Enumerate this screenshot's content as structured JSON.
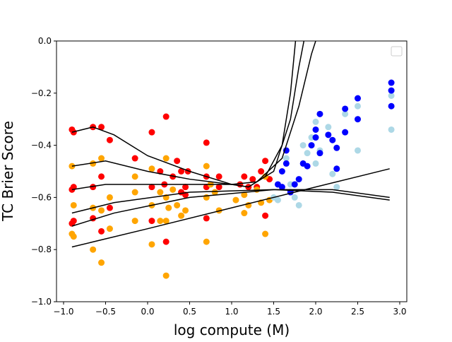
{
  "chart_data": {
    "type": "scatter",
    "xlabel": "log compute (M)",
    "ylabel": "TC Brier Score",
    "xlim": [
      -1.084,
      3.084
    ],
    "ylim": [
      -1.0,
      0.0
    ],
    "xticks": [
      {
        "value": -1.0,
        "label": "−1.0"
      },
      {
        "value": -0.5,
        "label": "−0.5"
      },
      {
        "value": 0.0,
        "label": "0.0"
      },
      {
        "value": 0.5,
        "label": "0.5"
      },
      {
        "value": 1.0,
        "label": "1.0"
      },
      {
        "value": 1.5,
        "label": "1.5"
      },
      {
        "value": 2.0,
        "label": "2.0"
      },
      {
        "value": 2.5,
        "label": "2.5"
      },
      {
        "value": 3.0,
        "label": "3.0"
      }
    ],
    "yticks": [
      {
        "value": -1.0,
        "label": "−1.0"
      },
      {
        "value": -0.8,
        "label": "−0.8"
      },
      {
        "value": -0.6,
        "label": "−0.6"
      },
      {
        "value": -0.4,
        "label": "−0.4"
      },
      {
        "value": -0.2,
        "label": "−0.2"
      },
      {
        "value": 0.0,
        "label": "0.0"
      }
    ],
    "legend": "upper right",
    "series": [
      {
        "type": "scatter",
        "color": "#ff0000",
        "x": [
          -0.9,
          -0.88,
          -0.65,
          -0.55,
          -0.45,
          -0.9,
          -0.88,
          -0.65,
          -0.55,
          -0.45,
          -0.9,
          -0.88,
          -0.55,
          -0.65,
          -0.15,
          0.05,
          0.22,
          0.05,
          0.05,
          0.15,
          0.2,
          0.22,
          0.3,
          0.35,
          0.4,
          0.45,
          0.48,
          0.4,
          0.45,
          0.7,
          0.7,
          0.7,
          0.7,
          0.85,
          0.85,
          1.1,
          1.15,
          1.2,
          1.25,
          1.3,
          1.35,
          1.4,
          1.4,
          1.45
        ],
        "values": [
          -0.34,
          -0.35,
          -0.33,
          -0.33,
          -0.38,
          -0.57,
          -0.56,
          -0.56,
          -0.52,
          -0.64,
          -0.7,
          -0.69,
          -0.73,
          -0.68,
          -0.45,
          -0.35,
          -0.29,
          -0.56,
          -0.69,
          -0.5,
          -0.55,
          -0.77,
          -0.52,
          -0.46,
          -0.5,
          -0.56,
          -0.5,
          -0.58,
          -0.59,
          -0.39,
          -0.52,
          -0.56,
          -0.68,
          -0.52,
          -0.56,
          -0.55,
          -0.52,
          -0.56,
          -0.53,
          -0.56,
          -0.5,
          -0.46,
          -0.67,
          -0.53
        ]
      },
      {
        "type": "scatter",
        "color": "#ffa500",
        "x": [
          -0.9,
          -0.88,
          -0.9,
          -0.88,
          -0.65,
          -0.65,
          -0.65,
          -0.55,
          -0.55,
          -0.55,
          -0.45,
          -0.45,
          -0.15,
          -0.15,
          -0.15,
          0.05,
          0.05,
          0.05,
          0.15,
          0.15,
          0.22,
          0.22,
          0.22,
          0.22,
          0.25,
          0.3,
          0.35,
          0.4,
          0.45,
          0.7,
          0.7,
          0.7,
          0.75,
          0.8,
          0.85,
          1.05,
          1.15,
          1.15,
          1.2,
          1.3,
          1.35,
          1.4,
          1.4,
          1.45
        ],
        "values": [
          -0.48,
          -0.63,
          -0.74,
          -0.75,
          -0.47,
          -0.64,
          -0.8,
          -0.45,
          -0.65,
          -0.85,
          -0.6,
          -0.72,
          -0.52,
          -0.58,
          -0.69,
          -0.49,
          -0.63,
          -0.78,
          -0.58,
          -0.69,
          -0.45,
          -0.6,
          -0.69,
          -0.9,
          -0.64,
          -0.57,
          -0.63,
          -0.67,
          -0.65,
          -0.48,
          -0.6,
          -0.77,
          -0.55,
          -0.58,
          -0.65,
          -0.61,
          -0.59,
          -0.66,
          -0.63,
          -0.57,
          -0.62,
          -0.52,
          -0.74,
          -0.61
        ]
      },
      {
        "type": "scatter",
        "color": "#add8e6",
        "x": [
          1.5,
          1.55,
          1.65,
          1.7,
          1.75,
          1.8,
          1.85,
          1.9,
          1.95,
          2.0,
          2.0,
          2.05,
          2.15,
          2.2,
          2.25,
          2.35,
          2.5,
          2.5,
          2.9,
          2.9
        ],
        "values": [
          -0.6,
          -0.61,
          -0.45,
          -0.55,
          -0.6,
          -0.63,
          -0.4,
          -0.43,
          -0.37,
          -0.31,
          -0.47,
          -0.42,
          -0.33,
          -0.51,
          -0.56,
          -0.28,
          -0.25,
          -0.42,
          -0.21,
          -0.34
        ]
      },
      {
        "type": "scatter",
        "color": "#0000ff",
        "x": [
          1.55,
          1.6,
          1.6,
          1.65,
          1.65,
          1.7,
          1.75,
          1.8,
          1.85,
          1.9,
          1.95,
          2.0,
          2.0,
          2.05,
          2.05,
          2.15,
          2.2,
          2.25,
          2.25,
          2.35,
          2.35,
          2.5,
          2.5,
          2.9,
          2.9,
          2.9
        ],
        "values": [
          -0.55,
          -0.5,
          -0.56,
          -0.42,
          -0.47,
          -0.58,
          -0.55,
          -0.53,
          -0.47,
          -0.48,
          -0.4,
          -0.34,
          -0.37,
          -0.28,
          -0.43,
          -0.36,
          -0.38,
          -0.41,
          -0.49,
          -0.26,
          -0.35,
          -0.22,
          -0.3,
          -0.16,
          -0.19,
          -0.25
        ]
      },
      {
        "type": "line",
        "color": "#000000",
        "x": [
          -0.9,
          0,
          1,
          2,
          2.88
        ],
        "values": [
          -0.79,
          -0.72,
          -0.64,
          -0.56,
          -0.49
        ]
      },
      {
        "type": "line",
        "color": "#000000",
        "x": [
          -0.9,
          -0.4,
          0.5,
          1.5,
          2.2,
          2.88
        ],
        "values": [
          -0.71,
          -0.66,
          -0.6,
          -0.57,
          -0.57,
          -0.6
        ]
      },
      {
        "type": "line",
        "color": "#000000",
        "x": [
          -0.9,
          -0.4,
          0.5,
          1.5,
          2.2,
          2.88
        ],
        "values": [
          -0.66,
          -0.62,
          -0.58,
          -0.57,
          -0.58,
          -0.61
        ]
      },
      {
        "type": "line",
        "color": "#000000",
        "x": [
          -0.9,
          -0.65,
          -0.4,
          0,
          0.5,
          1.0,
          1.2,
          1.4,
          1.6,
          1.7,
          1.76
        ],
        "values": [
          -0.35,
          -0.33,
          -0.36,
          -0.44,
          -0.5,
          -0.55,
          -0.56,
          -0.52,
          -0.4,
          -0.2,
          0.0
        ]
      },
      {
        "type": "line",
        "color": "#000000",
        "x": [
          -0.9,
          -0.5,
          0,
          0.5,
          1.0,
          1.2,
          1.5,
          1.7,
          1.8,
          1.86
        ],
        "values": [
          -0.48,
          -0.46,
          -0.5,
          -0.53,
          -0.55,
          -0.56,
          -0.5,
          -0.3,
          -0.1,
          0.0
        ]
      },
      {
        "type": "line",
        "color": "#000000",
        "x": [
          -0.9,
          -0.5,
          0,
          0.5,
          1.0,
          1.3,
          1.6,
          1.8,
          1.95,
          2.0
        ],
        "values": [
          -0.57,
          -0.55,
          -0.55,
          -0.55,
          -0.55,
          -0.54,
          -0.45,
          -0.25,
          -0.05,
          0.0
        ]
      }
    ]
  }
}
